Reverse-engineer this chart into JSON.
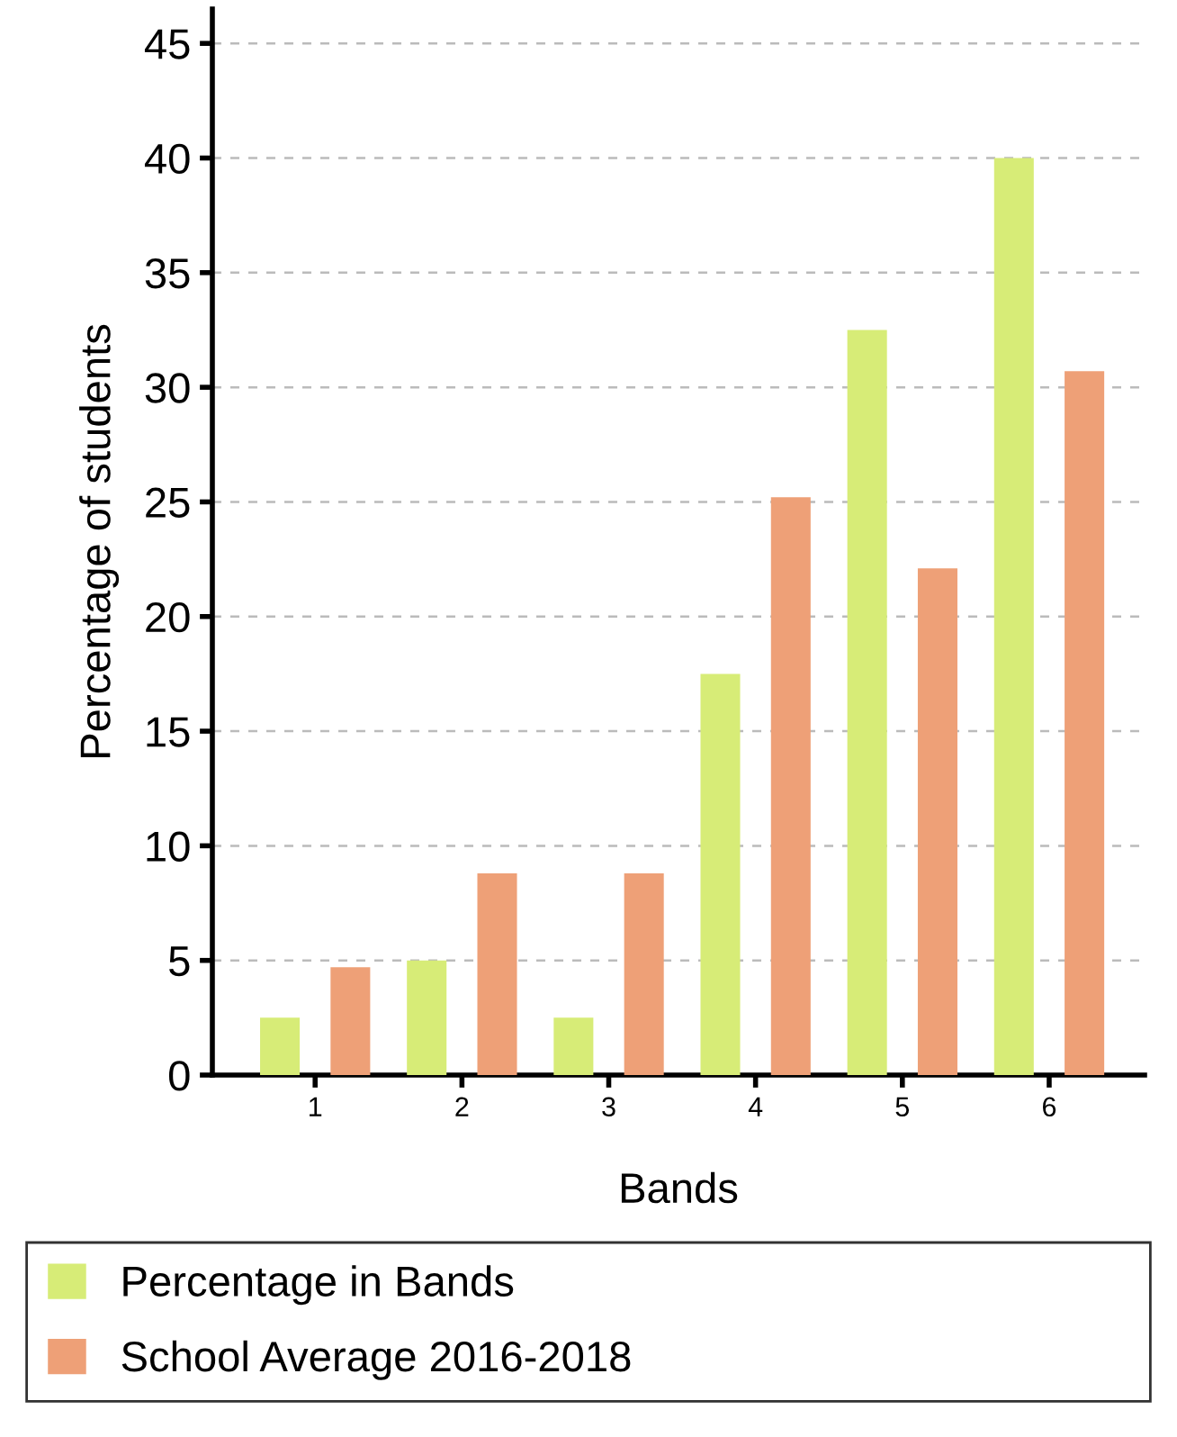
{
  "chart_data": {
    "type": "bar",
    "xlabel": "Bands",
    "ylabel": "Percentage of students",
    "categories": [
      "1",
      "2",
      "3",
      "4",
      "5",
      "6"
    ],
    "series": [
      {
        "name": "Percentage in Bands",
        "color": "#d7ec77",
        "values": [
          2.5,
          5,
          2.5,
          17.5,
          32.5,
          40
        ]
      },
      {
        "name": "School Average 2016-2018",
        "color": "#eea077",
        "values": [
          4.7,
          8.8,
          8.8,
          25.2,
          22.1,
          30.7
        ]
      }
    ],
    "ylim": [
      0,
      46.5
    ],
    "yticks": [
      0,
      5,
      10,
      15,
      20,
      25,
      30,
      35,
      40,
      45
    ],
    "grid": "y",
    "legend": "bottom"
  }
}
